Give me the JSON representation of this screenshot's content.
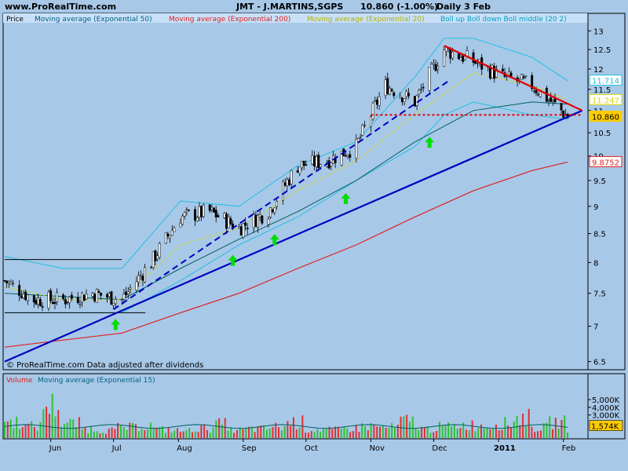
{
  "header": {
    "site": "www.ProRealTime.com",
    "title": "JMT - J.MARTINS,SGPS",
    "quote": "10.860 (-1.00%)",
    "period": "Daily  3 Feb"
  },
  "legend": {
    "price": "Price",
    "ma50": "Moving average (Exponential 50)",
    "ma200": "Moving average (Exponential 200)",
    "ma20": "Moving average (Exponential 20)",
    "boll": "Boll up Boll down Boll middle (20 2)"
  },
  "footer_note": "© ProRealTime.com  Data adjusted after dividends",
  "volume_legend": {
    "volume": "Volume",
    "ma15": "Moving average (Exponential 15)"
  },
  "colors": {
    "background": "#a8c8e8",
    "candle_up": "#ffffff",
    "candle_down": "#000000",
    "bollinger": "#20c0e0",
    "ema20": "#d8d800",
    "ema50": "#006060",
    "ema200": "#e02020",
    "trend_blue": "#0000c0",
    "trend_red": "#e00000",
    "arrow": "#00dd00",
    "vol_up": "#30c030",
    "vol_down": "#e03030"
  },
  "chart_data": [
    {
      "type": "line",
      "title": "JMT - J.MARTINS,SGPS",
      "ylabel": "Price",
      "scale": "log",
      "ylim": [
        6.4,
        13.2
      ],
      "x_tick_labels": [
        "Jun",
        "Jul",
        "Aug",
        "Sep",
        "Oct",
        "Nov",
        "Dec",
        "2011",
        "Feb"
      ],
      "y_tick_labels": [
        "6.5",
        "7",
        "7.5",
        "8",
        "8.5",
        "9",
        "9.5",
        "10",
        "10.5",
        "11",
        "11.5",
        "12",
        "12.5",
        "13"
      ],
      "price_labels": [
        {
          "value": "11.714",
          "color": "#20c0e0"
        },
        {
          "value": "11.247",
          "color": "#d8d800"
        },
        {
          "value": "10.860",
          "color": "#ffcc00"
        },
        {
          "value": "9.8752",
          "color": "#e02020"
        }
      ],
      "last_close": 10.86,
      "series": [
        {
          "name": "Price",
          "x": [
            "2010-05-10",
            "2010-05-24",
            "2010-06-07",
            "2010-06-21",
            "2010-07-05",
            "2010-07-19",
            "2010-08-02",
            "2010-08-16",
            "2010-08-30",
            "2010-09-13",
            "2010-09-27",
            "2010-10-11",
            "2010-10-25",
            "2010-11-08",
            "2010-11-22",
            "2010-12-06",
            "2010-12-20",
            "2011-01-03",
            "2011-01-17",
            "2011-01-31",
            "2011-02-03"
          ],
          "values": [
            7.7,
            7.4,
            7.4,
            7.5,
            7.4,
            8.0,
            8.8,
            8.9,
            8.6,
            8.9,
            9.8,
            9.9,
            10.2,
            11.6,
            11.2,
            12.5,
            12.2,
            11.8,
            11.6,
            11.0,
            10.86
          ]
        },
        {
          "name": "Moving average (Exponential 20)",
          "x": [
            "2010-05-10",
            "2010-06-07",
            "2010-07-05",
            "2010-08-02",
            "2010-08-30",
            "2010-09-27",
            "2010-10-25",
            "2010-11-22",
            "2010-12-20",
            "2011-01-17",
            "2011-02-03"
          ],
          "values": [
            7.6,
            7.4,
            7.4,
            8.3,
            8.6,
            9.3,
            9.9,
            10.9,
            11.9,
            11.6,
            11.25
          ]
        },
        {
          "name": "Moving average (Exponential 50)",
          "x": [
            "2010-05-10",
            "2010-06-07",
            "2010-07-05",
            "2010-08-02",
            "2010-08-30",
            "2010-09-27",
            "2010-10-25",
            "2010-11-22",
            "2010-12-20",
            "2011-01-17",
            "2011-02-03"
          ],
          "values": [
            7.5,
            7.45,
            7.4,
            7.9,
            8.4,
            8.9,
            9.5,
            10.3,
            11.0,
            11.2,
            11.15
          ]
        },
        {
          "name": "Moving average (Exponential 200)",
          "x": [
            "2010-05-10",
            "2010-06-07",
            "2010-07-05",
            "2010-08-02",
            "2010-08-30",
            "2010-09-27",
            "2010-10-25",
            "2010-11-22",
            "2010-12-20",
            "2011-01-17",
            "2011-02-03"
          ],
          "values": [
            6.7,
            6.8,
            6.9,
            7.2,
            7.5,
            7.9,
            8.3,
            8.8,
            9.3,
            9.7,
            9.875
          ]
        },
        {
          "name": "Boll up",
          "x": [
            "2010-05-10",
            "2010-06-07",
            "2010-07-05",
            "2010-08-02",
            "2010-08-30",
            "2010-09-27",
            "2010-10-25",
            "2010-11-22",
            "2010-12-06",
            "2010-12-20",
            "2011-01-17",
            "2011-02-03"
          ],
          "values": [
            8.1,
            7.9,
            7.9,
            9.1,
            9.0,
            9.8,
            10.3,
            11.8,
            12.8,
            12.8,
            12.3,
            11.71
          ]
        },
        {
          "name": "Boll down",
          "x": [
            "2010-05-10",
            "2010-06-07",
            "2010-07-05",
            "2010-08-02",
            "2010-08-30",
            "2010-09-27",
            "2010-10-25",
            "2010-11-22",
            "2010-12-06",
            "2010-12-20",
            "2011-01-17",
            "2011-02-03"
          ],
          "values": [
            7.2,
            7.2,
            7.2,
            7.7,
            8.3,
            8.8,
            9.5,
            10.2,
            10.9,
            11.2,
            10.9,
            10.8
          ]
        }
      ],
      "trendlines": [
        {
          "color": "blue",
          "style": "solid",
          "from": [
            "2010-05-10",
            6.5
          ],
          "to": [
            "2011-02-10",
            11.0
          ]
        },
        {
          "color": "blue",
          "style": "dashed",
          "from": [
            "2010-07-01",
            7.25
          ],
          "to": [
            "2010-12-08",
            11.7
          ]
        },
        {
          "color": "red",
          "style": "solid",
          "from": [
            "2010-12-06",
            12.6
          ],
          "to": [
            "2011-02-10",
            11.0
          ]
        },
        {
          "color": "red",
          "style": "dotted",
          "from": [
            "2010-11-01",
            10.9
          ],
          "to": [
            "2011-02-10",
            10.9
          ]
        }
      ],
      "horizontal_box": {
        "upper": 8.05,
        "lower": 7.2,
        "from": "2010-05-10",
        "to": "2010-07-05"
      },
      "up_arrows": [
        "2010-07-02",
        "2010-08-27",
        "2010-09-16",
        "2010-10-20",
        "2010-11-29"
      ]
    },
    {
      "type": "bar",
      "title": "Volume",
      "ylabel": "Volume",
      "ylim": [
        0,
        5000000
      ],
      "y_tick_labels": [
        "5,000K",
        "4,000K",
        "3,000K"
      ],
      "value_labels": [
        {
          "value": "1,574K",
          "color": "#ffcc00"
        }
      ],
      "last_value": 1574000,
      "ma15_last": 1700000,
      "samples": [
        2500000,
        1800000,
        5000000,
        2200000,
        1400000,
        1200000,
        1600000,
        1900000,
        1300000,
        1100000,
        1500000,
        2100000,
        1200000,
        1400000,
        1700000,
        2400000,
        1300000,
        1200000,
        1500000,
        1800000,
        1600000,
        2600000,
        1400000,
        1700000,
        2000000,
        1900000,
        2200000,
        3100000,
        1600000,
        2400000,
        1574000
      ]
    }
  ]
}
